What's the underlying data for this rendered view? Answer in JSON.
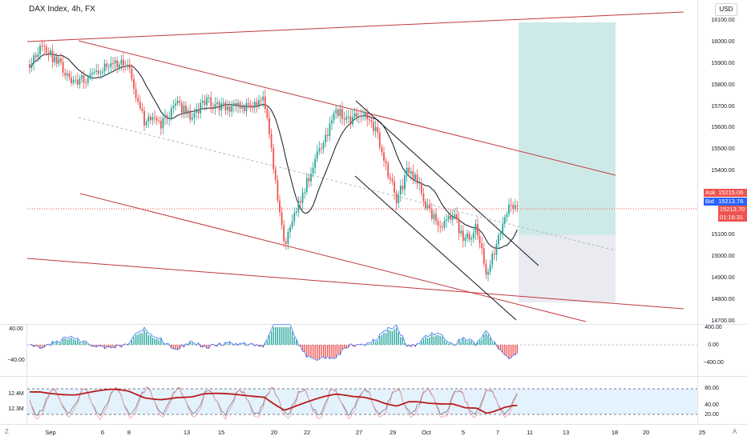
{
  "header": {
    "title": "DAX Index, 4h, FX",
    "currency": "USD"
  },
  "price_axis": {
    "ticks": [
      "16100.00",
      "16000.00",
      "15900.00",
      "15800.00",
      "15700.00",
      "15600.00",
      "15500.00",
      "15400.00",
      "15300.00",
      "15100.00",
      "15000.00",
      "14900.00",
      "14800.00",
      "14700.00"
    ]
  },
  "price_tags": {
    "ask_label": "Ask",
    "ask_value": "15215.06",
    "bid_label": "Bid",
    "bid_value": "15213.76",
    "last_value": "15213.70",
    "countdown": "01:16:31"
  },
  "colors": {
    "up": "#26a69a",
    "down": "#ef5350",
    "trendline": "#c2383c",
    "ma": "#131722",
    "target_zone": "#b2dfdb",
    "stop_zone": "#e0e3eb"
  },
  "macd_panel": {
    "left_ticks": [
      "40.00",
      "−40.00"
    ],
    "right_ticks": [
      "400.00",
      "0.00",
      "−400.00"
    ]
  },
  "stoch_panel": {
    "left_ticks": [
      "12.4M",
      "12.3M"
    ],
    "right_ticks": [
      "80.00",
      "40.00",
      "20.00"
    ]
  },
  "time_axis": {
    "labels": [
      "Sep",
      "6",
      "8",
      "13",
      "15",
      "20",
      "22",
      "27",
      "29",
      "Oct",
      "5",
      "7",
      "11",
      "13",
      "18",
      "20",
      "25"
    ]
  },
  "footer": {
    "left_icon_label": "Z",
    "right_icon_label": "A"
  }
}
